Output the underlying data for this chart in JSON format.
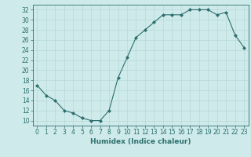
{
  "x": [
    0,
    1,
    2,
    3,
    4,
    5,
    6,
    7,
    8,
    9,
    10,
    11,
    12,
    13,
    14,
    15,
    16,
    17,
    18,
    19,
    20,
    21,
    22,
    23
  ],
  "y": [
    17,
    15,
    14,
    12,
    11.5,
    10.5,
    10,
    10,
    12,
    18.5,
    22.5,
    26.5,
    28,
    29.5,
    31,
    31,
    31,
    32,
    32,
    32,
    31,
    31.5,
    27,
    24.5
  ],
  "xlabel": "Humidex (Indice chaleur)",
  "xlim": [
    -0.5,
    23.5
  ],
  "ylim": [
    9,
    33
  ],
  "yticks": [
    10,
    12,
    14,
    16,
    18,
    20,
    22,
    24,
    26,
    28,
    30,
    32
  ],
  "xticks": [
    0,
    1,
    2,
    3,
    4,
    5,
    6,
    7,
    8,
    9,
    10,
    11,
    12,
    13,
    14,
    15,
    16,
    17,
    18,
    19,
    20,
    21,
    22,
    23
  ],
  "line_color": "#2d6e6e",
  "marker": "D",
  "marker_size": 2.0,
  "bg_color": "#ceeaea",
  "grid_color": "#b8d8d8",
  "label_fontsize": 6.5,
  "tick_fontsize": 5.5
}
